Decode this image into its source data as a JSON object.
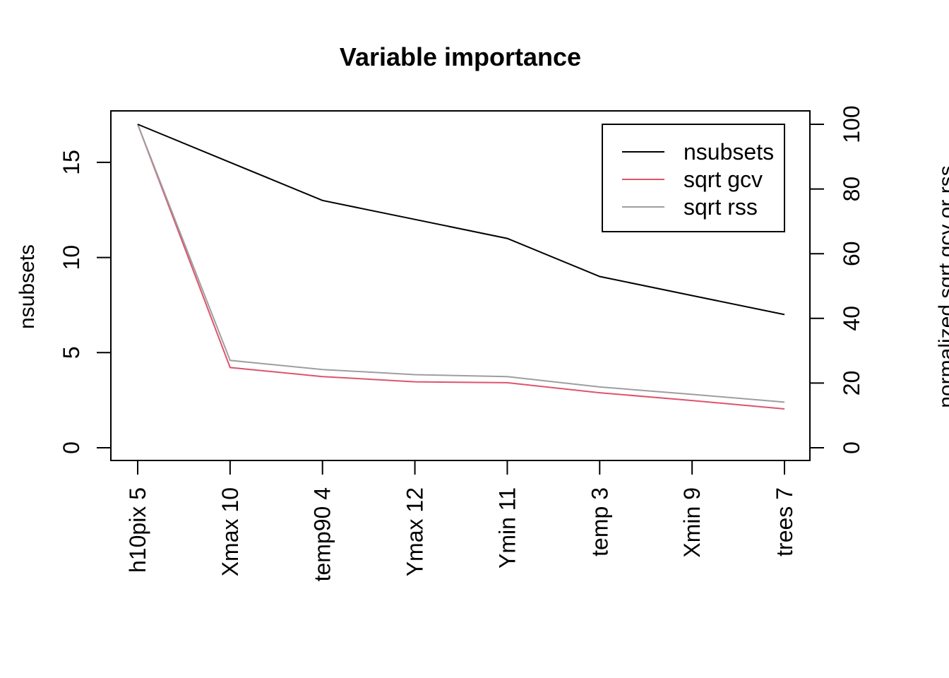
{
  "chart_data": {
    "type": "line",
    "title": "Variable importance",
    "ylabel": "nsubsets",
    "y2label": "normalized sqrt gcv or rss",
    "categories": [
      "h10pix  5",
      "Xmax  10",
      "temp90  4",
      "Ymax  12",
      "Ymin  11",
      "temp  3",
      "Xmin  9",
      "trees  7"
    ],
    "ylim": [
      0,
      17
    ],
    "y2lim": [
      0,
      100
    ],
    "yticks": [
      0,
      5,
      10,
      15
    ],
    "y2ticks": [
      0,
      20,
      40,
      60,
      80,
      100
    ],
    "legend_position": "top-right",
    "series": [
      {
        "name": "nsubsets",
        "axis": "left",
        "color": "#000000",
        "values": [
          17,
          15,
          13,
          12,
          11,
          9,
          8,
          7
        ]
      },
      {
        "name": "sqrt gcv",
        "axis": "right",
        "color": "#DF536B",
        "values": [
          100,
          24.8,
          22.0,
          20.4,
          20.1,
          17.0,
          14.6,
          12.0
        ]
      },
      {
        "name": "sqrt rss",
        "axis": "right",
        "color": "#9E9E9E",
        "values": [
          100,
          27.0,
          24.2,
          22.6,
          22.0,
          18.8,
          16.5,
          14.1
        ]
      }
    ]
  }
}
